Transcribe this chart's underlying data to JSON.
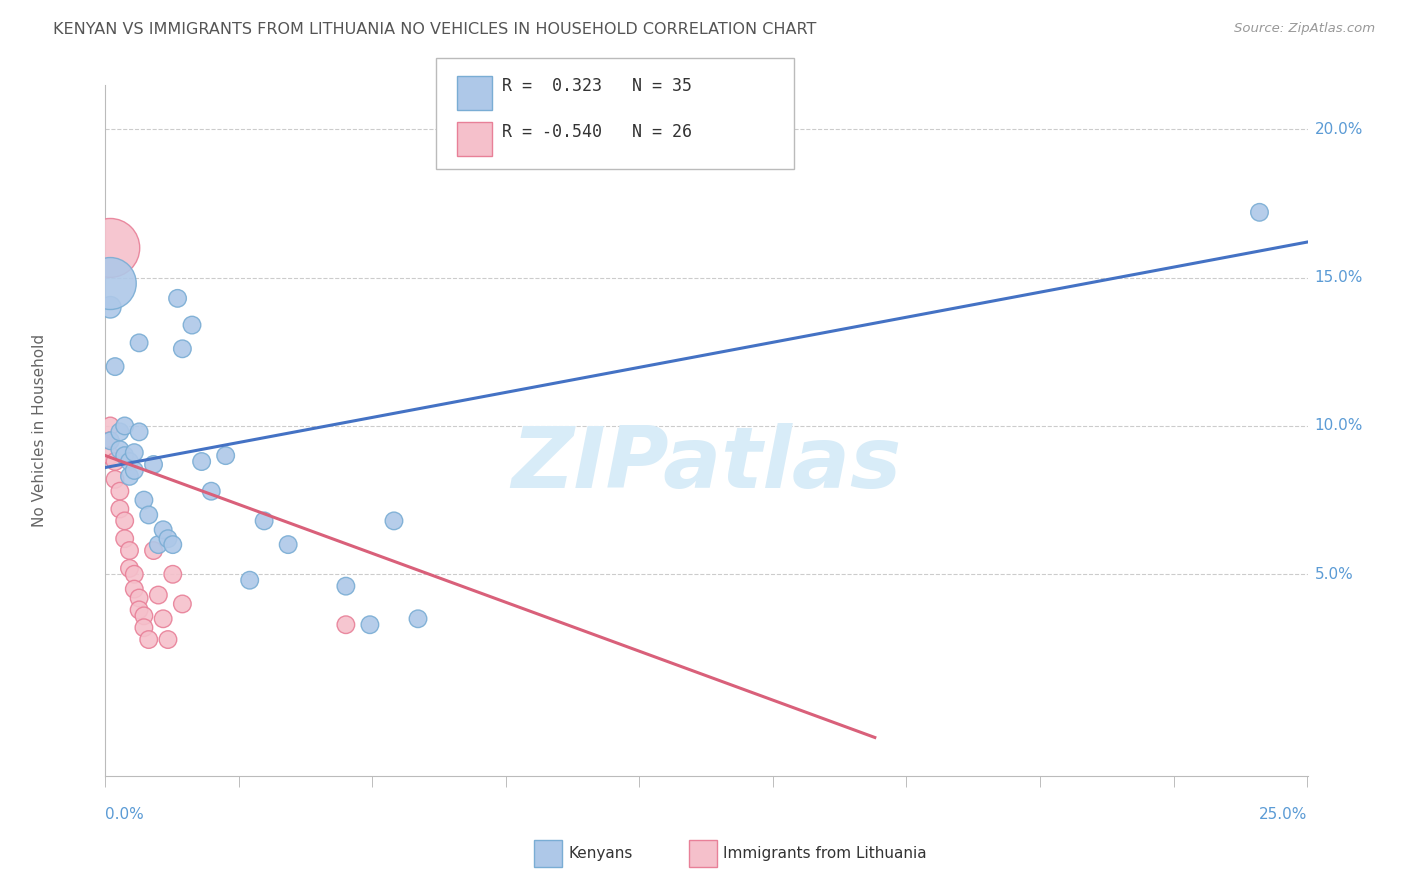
{
  "title": "KENYAN VS IMMIGRANTS FROM LITHUANIA NO VEHICLES IN HOUSEHOLD CORRELATION CHART",
  "source": "Source: ZipAtlas.com",
  "ylabel": "No Vehicles in Household",
  "xlim": [
    0,
    0.25
  ],
  "ylim": [
    -0.018,
    0.215
  ],
  "legend1_R": "0.323",
  "legend1_N": "35",
  "legend2_R": "-0.540",
  "legend2_N": "26",
  "kenyan_color": "#aec8e8",
  "kenyan_edge": "#7aadd4",
  "lithuania_color": "#f5c0cb",
  "lithuania_edge": "#e88098",
  "line_blue": "#4472c4",
  "line_pink": "#d9607a",
  "watermark_color": "#d8ecf8",
  "kenyan_x": [
    0.001,
    0.001,
    0.002,
    0.003,
    0.003,
    0.004,
    0.004,
    0.005,
    0.005,
    0.006,
    0.006,
    0.007,
    0.007,
    0.008,
    0.009,
    0.01,
    0.011,
    0.012,
    0.013,
    0.014,
    0.015,
    0.016,
    0.018,
    0.02,
    0.022,
    0.025,
    0.03,
    0.033,
    0.038,
    0.05,
    0.055,
    0.06,
    0.065,
    0.24,
    0.001
  ],
  "kenyan_y": [
    0.14,
    0.095,
    0.12,
    0.092,
    0.098,
    0.09,
    0.1,
    0.088,
    0.083,
    0.091,
    0.085,
    0.128,
    0.098,
    0.075,
    0.07,
    0.087,
    0.06,
    0.065,
    0.062,
    0.06,
    0.143,
    0.126,
    0.134,
    0.088,
    0.078,
    0.09,
    0.048,
    0.068,
    0.06,
    0.046,
    0.033,
    0.068,
    0.035,
    0.172,
    0.148
  ],
  "kenyan_sizes": [
    60,
    40,
    40,
    40,
    40,
    40,
    40,
    40,
    40,
    40,
    40,
    40,
    40,
    40,
    40,
    40,
    40,
    40,
    40,
    40,
    40,
    40,
    40,
    40,
    40,
    40,
    40,
    40,
    40,
    40,
    40,
    40,
    40,
    40,
    350
  ],
  "lithuania_x": [
    0.001,
    0.001,
    0.001,
    0.002,
    0.002,
    0.003,
    0.003,
    0.004,
    0.004,
    0.005,
    0.005,
    0.006,
    0.006,
    0.007,
    0.007,
    0.008,
    0.008,
    0.009,
    0.01,
    0.011,
    0.012,
    0.013,
    0.014,
    0.016,
    0.05,
    0.001
  ],
  "lithuania_y": [
    0.1,
    0.095,
    0.09,
    0.088,
    0.082,
    0.078,
    0.072,
    0.068,
    0.062,
    0.058,
    0.052,
    0.05,
    0.045,
    0.042,
    0.038,
    0.036,
    0.032,
    0.028,
    0.058,
    0.043,
    0.035,
    0.028,
    0.05,
    0.04,
    0.033,
    0.16
  ],
  "lithuania_sizes": [
    40,
    40,
    40,
    40,
    40,
    40,
    40,
    40,
    40,
    40,
    40,
    40,
    40,
    40,
    40,
    40,
    40,
    40,
    40,
    40,
    40,
    40,
    40,
    40,
    40,
    450
  ],
  "blue_line_x": [
    0.0,
    0.25
  ],
  "blue_line_y": [
    0.086,
    0.162
  ],
  "pink_line_x": [
    0.0,
    0.16
  ],
  "pink_line_y": [
    0.09,
    -0.005
  ]
}
